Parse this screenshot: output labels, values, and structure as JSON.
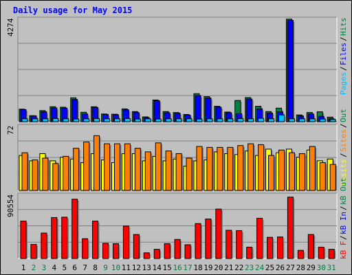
{
  "title": "Daily usage for May 2015",
  "colors": {
    "background": "#c0c0c0",
    "pages": "#00c0ff",
    "files": "#0000ff",
    "hits": "#008040",
    "visits": "#ffff00",
    "sites": "#ff8000",
    "kbytes": "#ff0000",
    "weekday_label": "#000000",
    "weekend_label": "#008040"
  },
  "chart_data": [
    {
      "type": "bar",
      "name": "hits-files-pages",
      "ymax": 4274,
      "ymax_label": "4274",
      "legend": [
        "Pages",
        "Files",
        "Hits"
      ],
      "x": [
        1,
        2,
        3,
        4,
        5,
        6,
        7,
        8,
        9,
        10,
        11,
        12,
        13,
        14,
        15,
        16,
        17,
        18,
        19,
        20,
        21,
        22,
        23,
        24,
        25,
        26,
        27,
        28,
        29,
        30,
        31
      ],
      "series": [
        {
          "name": "Hits",
          "values": [
            520,
            250,
            460,
            620,
            600,
            990,
            390,
            620,
            320,
            310,
            530,
            420,
            200,
            900,
            420,
            380,
            300,
            1160,
            1040,
            640,
            400,
            880,
            1000,
            640,
            420,
            560,
            4250,
            280,
            380,
            410,
            190
          ]
        },
        {
          "name": "Files",
          "values": [
            500,
            240,
            410,
            570,
            560,
            920,
            320,
            590,
            300,
            290,
            490,
            380,
            170,
            870,
            370,
            350,
            270,
            1080,
            980,
            600,
            370,
            330,
            940,
            530,
            360,
            410,
            4200,
            240,
            320,
            220,
            120
          ]
        },
        {
          "name": "Pages",
          "values": [
            120,
            120,
            120,
            130,
            120,
            110,
            120,
            130,
            120,
            120,
            130,
            110,
            120,
            110,
            120,
            120,
            120,
            110,
            120,
            120,
            120,
            130,
            120,
            140,
            120,
            280,
            120,
            120,
            120,
            110,
            90
          ]
        }
      ]
    },
    {
      "type": "bar",
      "name": "visits-sites",
      "ymax": 72,
      "ymax_label": "72",
      "legend": [
        "Visits",
        "Sites",
        "Out"
      ],
      "x": [
        1,
        2,
        3,
        4,
        5,
        6,
        7,
        8,
        9,
        10,
        11,
        12,
        13,
        14,
        15,
        16,
        17,
        18,
        19,
        20,
        21,
        22,
        23,
        24,
        25,
        26,
        27,
        28,
        29,
        30,
        31
      ],
      "series": [
        {
          "name": "Visits",
          "values": [
            39,
            33,
            41,
            33,
            37,
            35,
            31,
            41,
            34,
            31,
            41,
            41,
            33,
            38,
            33,
            35,
            27,
            33,
            34,
            43,
            41,
            40,
            44,
            39,
            46,
            42,
            46,
            37,
            45,
            33,
            35
          ]
        },
        {
          "name": "Sites",
          "values": [
            42,
            34,
            36,
            30,
            38,
            47,
            54,
            61,
            52,
            52,
            52,
            47,
            43,
            53,
            44,
            41,
            36,
            49,
            48,
            48,
            48,
            50,
            52,
            51,
            39,
            45,
            42,
            41,
            49,
            31,
            29
          ]
        }
      ]
    },
    {
      "type": "bar",
      "name": "kbytes",
      "ymax": 90554,
      "ymax_label": "90554",
      "legend": [
        "kB F",
        "kB In",
        "kB Out"
      ],
      "x": [
        1,
        2,
        3,
        4,
        5,
        6,
        7,
        8,
        9,
        10,
        11,
        12,
        13,
        14,
        15,
        16,
        17,
        18,
        19,
        20,
        21,
        22,
        23,
        24,
        25,
        26,
        27,
        28,
        29,
        30,
        31
      ],
      "series": [
        {
          "name": "kB F",
          "values": [
            53000,
            20000,
            36000,
            58000,
            58500,
            84000,
            28000,
            53000,
            21500,
            21000,
            46000,
            34000,
            8000,
            13000,
            21000,
            27000,
            19500,
            49500,
            56000,
            70000,
            40000,
            39500,
            16000,
            57000,
            30000,
            30500,
            87000,
            11500,
            34000,
            16000,
            13000
          ]
        }
      ]
    }
  ]
}
